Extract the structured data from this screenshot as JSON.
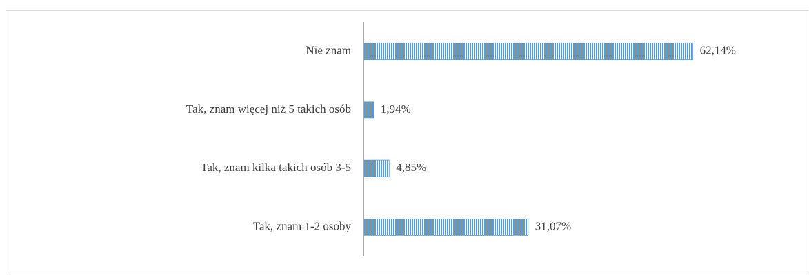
{
  "chart_data": {
    "type": "bar",
    "orientation": "horizontal",
    "categories": [
      "Nie znam",
      "Tak, znam więcej niż 5 takich osób",
      "Tak, znam kilka takich osób 3-5",
      "Tak, znam 1-2 osoby"
    ],
    "values": [
      62.14,
      1.94,
      4.85,
      31.07
    ],
    "value_labels": [
      "62,14%",
      "1,94%",
      "4,85%",
      "31,07%"
    ],
    "color": "#5b9bd5",
    "xlim": [
      0,
      70
    ]
  }
}
